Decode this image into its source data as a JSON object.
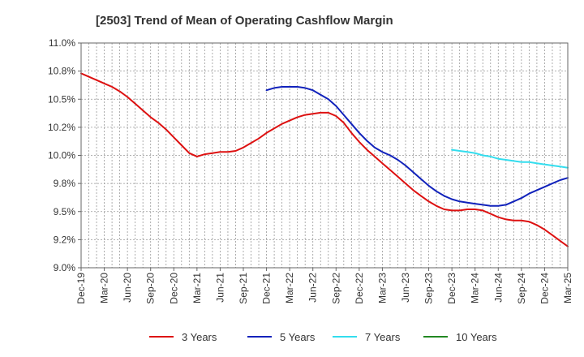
{
  "chart_data": {
    "type": "line",
    "title": "[2503]  Trend of Mean of Operating Cashflow Margin",
    "xlabel": "",
    "ylabel": "",
    "x_ticks": [
      "Dec-19",
      "Mar-20",
      "Jun-20",
      "Sep-20",
      "Dec-20",
      "Mar-21",
      "Jun-21",
      "Sep-21",
      "Dec-21",
      "Mar-22",
      "Jun-22",
      "Sep-22",
      "Dec-22",
      "Mar-23",
      "Jun-23",
      "Sep-23",
      "Dec-23",
      "Mar-24",
      "Jun-24",
      "Sep-24",
      "Dec-24",
      "Mar-25"
    ],
    "y_ticks": [
      "9.0%",
      "9.2%",
      "9.5%",
      "9.8%",
      "10.0%",
      "10.2%",
      "10.5%",
      "10.8%",
      "11.0%"
    ],
    "ylim": [
      9.0,
      11.0
    ],
    "grid": true,
    "legend_position": "bottom",
    "series": [
      {
        "name": "3 Years",
        "color": "#dd1111",
        "points": [
          [
            "Dec-19",
            10.73
          ],
          [
            "Jan-20",
            10.7
          ],
          [
            "Feb-20",
            10.67
          ],
          [
            "Mar-20",
            10.64
          ],
          [
            "Apr-20",
            10.61
          ],
          [
            "May-20",
            10.57
          ],
          [
            "Jun-20",
            10.52
          ],
          [
            "Jul-20",
            10.46
          ],
          [
            "Aug-20",
            10.4
          ],
          [
            "Sep-20",
            10.34
          ],
          [
            "Oct-20",
            10.29
          ],
          [
            "Nov-20",
            10.23
          ],
          [
            "Dec-20",
            10.16
          ],
          [
            "Jan-21",
            10.09
          ],
          [
            "Feb-21",
            10.02
          ],
          [
            "Mar-21",
            9.99
          ],
          [
            "Apr-21",
            10.01
          ],
          [
            "May-21",
            10.02
          ],
          [
            "Jun-21",
            10.03
          ],
          [
            "Jul-21",
            10.03
          ],
          [
            "Aug-21",
            10.04
          ],
          [
            "Sep-21",
            10.07
          ],
          [
            "Oct-21",
            10.11
          ],
          [
            "Nov-21",
            10.15
          ],
          [
            "Dec-21",
            10.2
          ],
          [
            "Jan-22",
            10.24
          ],
          [
            "Feb-22",
            10.28
          ],
          [
            "Mar-22",
            10.31
          ],
          [
            "Apr-22",
            10.34
          ],
          [
            "May-22",
            10.36
          ],
          [
            "Jun-22",
            10.37
          ],
          [
            "Jul-22",
            10.38
          ],
          [
            "Aug-22",
            10.38
          ],
          [
            "Sep-22",
            10.35
          ],
          [
            "Oct-22",
            10.29
          ],
          [
            "Nov-22",
            10.2
          ],
          [
            "Dec-22",
            10.12
          ],
          [
            "Jan-23",
            10.05
          ],
          [
            "Feb-23",
            9.99
          ],
          [
            "Mar-23",
            9.93
          ],
          [
            "Apr-23",
            9.87
          ],
          [
            "May-23",
            9.81
          ],
          [
            "Jun-23",
            9.75
          ],
          [
            "Jul-23",
            9.69
          ],
          [
            "Aug-23",
            9.64
          ],
          [
            "Sep-23",
            9.59
          ],
          [
            "Oct-23",
            9.55
          ],
          [
            "Nov-23",
            9.52
          ],
          [
            "Dec-23",
            9.51
          ],
          [
            "Jan-24",
            9.51
          ],
          [
            "Feb-24",
            9.52
          ],
          [
            "Mar-24",
            9.52
          ],
          [
            "Apr-24",
            9.51
          ],
          [
            "May-24",
            9.48
          ],
          [
            "Jun-24",
            9.45
          ],
          [
            "Jul-24",
            9.43
          ],
          [
            "Aug-24",
            9.42
          ],
          [
            "Sep-24",
            9.42
          ],
          [
            "Oct-24",
            9.41
          ],
          [
            "Nov-24",
            9.38
          ],
          [
            "Dec-24",
            9.34
          ],
          [
            "Jan-25",
            9.29
          ],
          [
            "Feb-25",
            9.24
          ],
          [
            "Mar-25",
            9.19
          ],
          [
            "Apr-25",
            9.15
          ]
        ]
      },
      {
        "name": "5 Years",
        "color": "#1122bb",
        "points": [
          [
            "Dec-21",
            10.58
          ],
          [
            "Jan-22",
            10.6
          ],
          [
            "Feb-22",
            10.61
          ],
          [
            "Mar-22",
            10.61
          ],
          [
            "Apr-22",
            10.61
          ],
          [
            "May-22",
            10.6
          ],
          [
            "Jun-22",
            10.58
          ],
          [
            "Jul-22",
            10.54
          ],
          [
            "Aug-22",
            10.5
          ],
          [
            "Sep-22",
            10.44
          ],
          [
            "Oct-22",
            10.36
          ],
          [
            "Nov-22",
            10.28
          ],
          [
            "Dec-22",
            10.2
          ],
          [
            "Jan-23",
            10.13
          ],
          [
            "Feb-23",
            10.07
          ],
          [
            "Mar-23",
            10.03
          ],
          [
            "Apr-23",
            10.0
          ],
          [
            "May-23",
            9.96
          ],
          [
            "Jun-23",
            9.91
          ],
          [
            "Jul-23",
            9.85
          ],
          [
            "Aug-23",
            9.79
          ],
          [
            "Sep-23",
            9.73
          ],
          [
            "Oct-23",
            9.68
          ],
          [
            "Nov-23",
            9.64
          ],
          [
            "Dec-23",
            9.61
          ],
          [
            "Jan-24",
            9.59
          ],
          [
            "Feb-24",
            9.58
          ],
          [
            "Mar-24",
            9.57
          ],
          [
            "Apr-24",
            9.56
          ],
          [
            "May-24",
            9.55
          ],
          [
            "Jun-24",
            9.55
          ],
          [
            "Jul-24",
            9.56
          ],
          [
            "Aug-24",
            9.59
          ],
          [
            "Sep-24",
            9.62
          ],
          [
            "Oct-24",
            9.66
          ],
          [
            "Nov-24",
            9.69
          ],
          [
            "Dec-24",
            9.72
          ],
          [
            "Jan-25",
            9.75
          ],
          [
            "Feb-25",
            9.78
          ],
          [
            "Mar-25",
            9.8
          ],
          [
            "Apr-25",
            9.82
          ]
        ]
      },
      {
        "name": "7 Years",
        "color": "#33ddee",
        "points": [
          [
            "Dec-23",
            10.05
          ],
          [
            "Jan-24",
            10.04
          ],
          [
            "Feb-24",
            10.03
          ],
          [
            "Mar-24",
            10.02
          ],
          [
            "Apr-24",
            10.0
          ],
          [
            "May-24",
            9.99
          ],
          [
            "Jun-24",
            9.97
          ],
          [
            "Jul-24",
            9.96
          ],
          [
            "Aug-24",
            9.95
          ],
          [
            "Sep-24",
            9.94
          ],
          [
            "Oct-24",
            9.94
          ],
          [
            "Nov-24",
            9.93
          ],
          [
            "Dec-24",
            9.92
          ],
          [
            "Jan-25",
            9.91
          ],
          [
            "Feb-25",
            9.9
          ],
          [
            "Mar-25",
            9.89
          ],
          [
            "Apr-25",
            9.87
          ]
        ]
      },
      {
        "name": "10 Years",
        "color": "#228822",
        "points": []
      }
    ]
  }
}
